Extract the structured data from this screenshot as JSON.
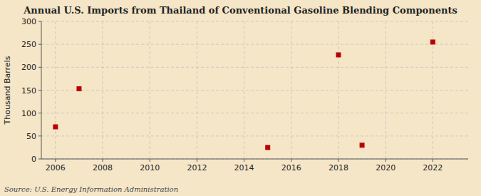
{
  "chart_data": {
    "type": "scatter",
    "title": "Annual U.S. Imports from Thailand of Conventional Gasoline Blending Components",
    "ylabel": "Thousand Barrels",
    "annotations": [
      "Source: U.S. Energy Information Administration"
    ],
    "x": [
      2006,
      2007,
      2015,
      2018,
      2019,
      2022
    ],
    "values": [
      70,
      153,
      25,
      227,
      30,
      255
    ],
    "color": "#bb0000",
    "marker": "square",
    "xlim": [
      2005.4,
      2023.5
    ],
    "ylim": [
      0,
      300
    ],
    "xticks": [
      2006,
      2008,
      2010,
      2012,
      2014,
      2016,
      2018,
      2020,
      2022
    ],
    "yticks": [
      0,
      50,
      100,
      150,
      200,
      250,
      300
    ],
    "grid": true
  }
}
